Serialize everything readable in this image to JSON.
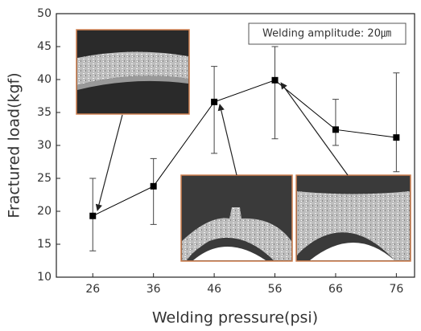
{
  "chart_data": {
    "type": "line",
    "annotation": "Welding amplitude: 20㎛",
    "x_label": "Welding pressure(psi)",
    "y_label": "Fractured load(kgf)",
    "x": [
      26,
      36,
      46,
      56,
      66,
      76
    ],
    "series": [
      {
        "color": "#000000",
        "values": [
          19.3,
          23.8,
          36.6,
          39.9,
          32.4,
          31.2
        ],
        "lower": [
          14,
          18,
          28.8,
          31,
          30,
          26
        ],
        "upper": [
          25,
          28,
          42,
          45,
          37,
          41
        ]
      }
    ],
    "xlim": [
      20,
      79
    ],
    "xticks": [
      26,
      36,
      46,
      56,
      66,
      76
    ],
    "ylim": [
      10,
      50
    ],
    "yticks": [
      10,
      15,
      20,
      25,
      30,
      35,
      40,
      45,
      50
    ]
  }
}
